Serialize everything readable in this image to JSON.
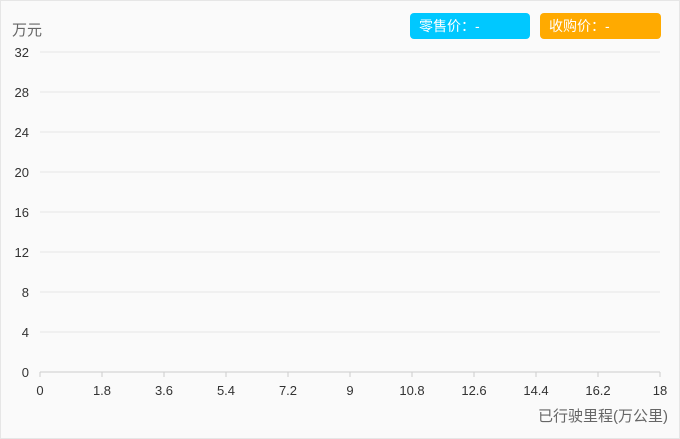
{
  "chart_data": {
    "type": "line",
    "ylabel": "万元",
    "xlabel": "已行驶里程(万公里)",
    "y_ticks": [
      "0",
      "4",
      "8",
      "12",
      "16",
      "20",
      "24",
      "28",
      "32"
    ],
    "x_ticks": [
      "0",
      "1.8",
      "3.6",
      "5.4",
      "7.2",
      "9",
      "10.8",
      "12.6",
      "14.4",
      "16.2",
      "18"
    ],
    "xlim": [
      0,
      18
    ],
    "ylim": [
      0,
      32
    ],
    "grid": true,
    "legend_position": "top-right",
    "series": [
      {
        "name": "零售价",
        "display": "零售价：-",
        "color": "#00c8ff",
        "values": []
      },
      {
        "name": "收购价",
        "display": "收购价：-",
        "color": "#ffaa00",
        "values": []
      }
    ]
  }
}
